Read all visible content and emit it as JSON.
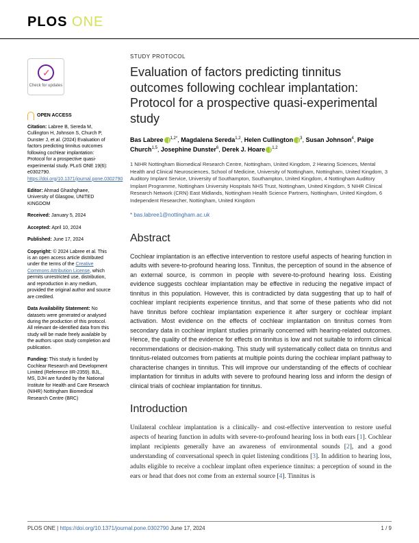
{
  "journal": {
    "plos": "PLOS",
    "one": "ONE"
  },
  "article_type": "STUDY PROTOCOL",
  "title": "Evaluation of factors predicting tinnitus outcomes following cochlear implantation: Protocol for a prospective quasi-experimental study",
  "authors": [
    {
      "name": "Bas Labree",
      "sup": "1,2",
      "orcid": true,
      "corr": true
    },
    {
      "name": "Magdalena Sereda",
      "sup": "1,2",
      "orcid": false
    },
    {
      "name": "Helen Cullington",
      "sup": "3",
      "orcid": true
    },
    {
      "name": "Susan Johnson",
      "sup": "4",
      "orcid": false
    },
    {
      "name": "Paige Church",
      "sup": "1,5",
      "orcid": false
    },
    {
      "name": "Josephine Dunster",
      "sup": "6",
      "orcid": false
    },
    {
      "name": "Derek J. Hoare",
      "sup": "1,2",
      "orcid": true
    }
  ],
  "affiliations": "1 NIHR Nottingham Biomedical Research Centre, Nottingham, United Kingdom, 2 Hearing Sciences, Mental Health and Clinical Neurosciences, School of Medicine, University of Nottingham, Nottingham, United Kingdom, 3 Auditory Implant Service, University of Southampton, Southampton, United Kingdom, 4 Nottingham Auditory Implant Programme, Nottingham University Hospitals NHS Trust, Nottingham, United Kingdom, 5 NIHR Clinical Research Network (CRN) East Midlands, Nottingham Health Science Partners, Nottingham, United Kingdom, 6 Independent Researcher, Nottingham, United Kingdom",
  "corresponding": "* bas.labree1@nottingham.ac.uk",
  "check_updates": "Check for updates",
  "open_access_label": "OPEN ACCESS",
  "sidebar": {
    "citation_label": "Citation:",
    "citation": " Labree B, Sereda M, Cullington H, Johnson S, Church P, Dunster J, et al. (2024) Evaluation of factors predicting tinnitus outcomes following cochlear implantation: Protocol for a prospective quasi-experimental study. PLoS ONE 19(6): e0302790. ",
    "citation_doi": "https://doi.org/10.1371/journal.pone.0302790",
    "editor_label": "Editor:",
    "editor": " Ahmad Ghashghaee, University of Glasgow, UNITED KINGDOM",
    "received_label": "Received:",
    "received": " January 5, 2024",
    "accepted_label": "Accepted:",
    "accepted": " April 10, 2024",
    "published_label": "Published:",
    "published": " June 17, 2024",
    "copyright_label": "Copyright:",
    "copyright": " © 2024 Labree et al. This is an open access article distributed under the terms of the ",
    "cc_link": "Creative Commons Attribution License",
    "copyright2": ", which permits unrestricted use, distribution, and reproduction in any medium, provided the original author and source are credited.",
    "data_label": "Data Availability Statement:",
    "data": " No datasets were generated or analysed during the production of this protocol. All relevant de-identified data from this study will be made freely available by the authors upon study completion and publication.",
    "funding_label": "Funding:",
    "funding": " This study is funded by Cochlear Research and Development Limited (Reference IIR-2359). BJL, MS, DJH are funded by the National Institute for Health and Care Research (NIHR) Nottingham Biomedical Research Centre (BRC)"
  },
  "abstract": {
    "heading": "Abstract",
    "text": "Cochlear implantation is an effective intervention to restore useful aspects of hearing function in adults with severe-to-profound hearing loss. Tinnitus, the perception of sound in the absence of an external source, is common in people with severe-to-profound hearing loss. Existing evidence suggests cochlear implantation may be effective in reducing the negative impact of tinnitus in this population. However, this is contradicted by data suggesting that up to half of cochlear implant recipients experience tinnitus, and that some of these patients who did not have tinnitus before cochlear implantation experience it after surgery or cochlear implant activation. Most evidence on the effects of cochlear implantation on tinnitus comes from secondary data in cochlear implant studies primarily concerned with hearing-related outcomes. Hence, the quality of the evidence for effects on tinnitus is low and not suitable to inform clinical recommendations or decision-making. This study will systematically collect data on tinnitus and tinnitus-related outcomes from patients at multiple points during the cochlear implant pathway to characterise changes in tinnitus. This will improve our understanding of the effects of cochlear implantation for tinnitus in adults with severe to profound hearing loss and inform the design of clinical trials of cochlear implantation for tinnitus."
  },
  "introduction": {
    "heading": "Introduction",
    "text_parts": [
      "Unilateral cochlear implantation is a clinically- and cost-effective intervention to restore useful aspects of hearing function in adults with severe-to-profound hearing loss in both ears [",
      "1",
      "]. Cochlear implant recipients generally have an awareness of environmental sounds [",
      "2",
      "], and a good understanding of conversational speech in quiet listening conditions [",
      "3",
      "]. In addition to hearing loss, adults eligible to receive a cochlear implant often experience tinnitus: a perception of sound in the ears or head that does not come from an external source [",
      "4",
      "]. Tinnitus is"
    ]
  },
  "footer": {
    "left_prefix": "PLOS ONE | ",
    "doi": "https://doi.org/10.1371/journal.pone.0302790",
    "date": "    June 17, 2024",
    "page": "1 / 9"
  },
  "colors": {
    "accent_green": "#d4e157",
    "orcid_green": "#a6ce39",
    "link_blue": "#3a6ca8",
    "oa_orange": "#f9a825",
    "check_purple": "#6a1b9a",
    "check_pink": "#ec407a"
  }
}
